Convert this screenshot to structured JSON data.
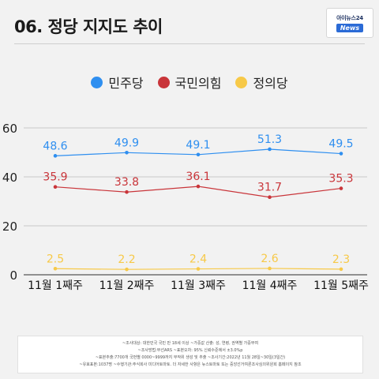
{
  "header": {
    "title": "06. 정당 지지도 추이",
    "logo_top": "아이뉴스24",
    "logo_bottom": "News"
  },
  "notes": [
    "~조사대상: 대한민국 국민 만 18세 이상  ~가중값 산출: 성, 연령, 권역별 가중부여",
    "~조사방법:무선ARS  ~표본오차: 95% 신뢰수준에서 ±3.0%p",
    "~표본추출:7700개 국번별 0000~9999까지 무작위 생성 및 추출  ~조사기간:2022년 11월 28일~30일(3일간)",
    "~유효표본:1037명  ~수행기관:주식회사 미디어토마토. 더 자세한 사항은 뉴스토마토 또는 중앙선거여론조사심의위원회 홈페이지 참조"
  ],
  "chart_data": {
    "type": "line",
    "categories": [
      "11월 1째주",
      "11월 2째주",
      "11월 3째주",
      "11월 4째주",
      "11월 5째주"
    ],
    "ylim": [
      0,
      60
    ],
    "yticks": [
      0,
      20,
      40,
      60
    ],
    "grid": true,
    "legend_position": "top",
    "series": [
      {
        "name": "민주당",
        "color": "#2f8ff0",
        "values": [
          48.6,
          49.9,
          49.1,
          51.3,
          49.5
        ]
      },
      {
        "name": "국민의힘",
        "color": "#c9353a",
        "values": [
          35.9,
          33.8,
          36.1,
          31.7,
          35.3
        ]
      },
      {
        "name": "정의당",
        "color": "#f7c948",
        "values": [
          2.5,
          2.2,
          2.4,
          2.6,
          2.3
        ]
      }
    ]
  }
}
